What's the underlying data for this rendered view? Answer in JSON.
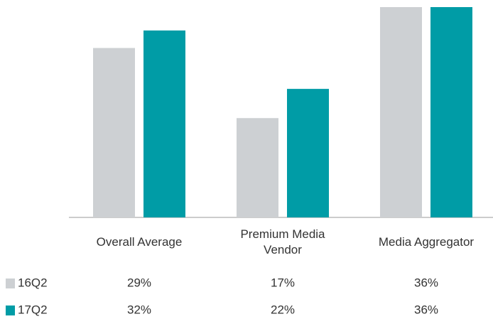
{
  "chart_data": {
    "type": "bar",
    "categories": [
      "Overall Average",
      "Premium Media Vendor",
      "Media Aggregator"
    ],
    "series": [
      {
        "name": "16Q2",
        "color": "#cdd0d3",
        "values": [
          29,
          17,
          36
        ],
        "value_labels": [
          "29%",
          "17%",
          "36%"
        ]
      },
      {
        "name": "17Q2",
        "color": "#009ca6",
        "values": [
          32,
          22,
          36
        ],
        "value_labels": [
          "32%",
          "22%",
          "36%"
        ]
      }
    ],
    "ylim": [
      0,
      36
    ]
  }
}
